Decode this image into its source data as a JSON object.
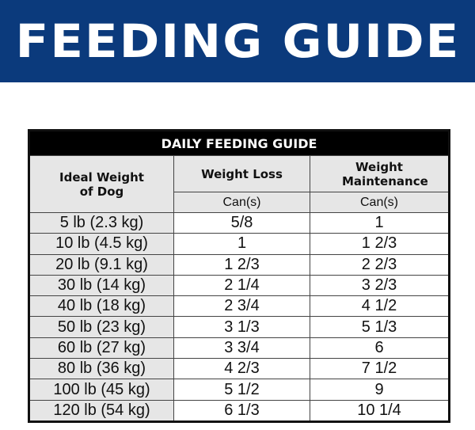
{
  "banner": {
    "title": "FEEDING GUIDE"
  },
  "table": {
    "title": "DAILY FEEDING GUIDE",
    "headers": {
      "weight": "Ideal Weight of Dog",
      "loss": "Weight Loss",
      "maintenance": "Weight Maintenance",
      "loss_unit": "Can(s)",
      "maintenance_unit": "Can(s)"
    },
    "rows": [
      {
        "weight": "5 lb (2.3 kg)",
        "loss": "5/8",
        "maintenance": "1"
      },
      {
        "weight": "10 lb (4.5 kg)",
        "loss": "1",
        "maintenance": "1 2/3"
      },
      {
        "weight": "20 lb (9.1 kg)",
        "loss": "1 2/3",
        "maintenance": "2 2/3"
      },
      {
        "weight": "30 lb (14 kg)",
        "loss": "2 1/4",
        "maintenance": "3 2/3"
      },
      {
        "weight": "40 lb (18 kg)",
        "loss": "2 3/4",
        "maintenance": "4 1/2"
      },
      {
        "weight": "50 lb (23 kg)",
        "loss": "3 1/3",
        "maintenance": "5 1/3"
      },
      {
        "weight": "60 lb (27 kg)",
        "loss": "3 3/4",
        "maintenance": "6"
      },
      {
        "weight": "80 lb (36 kg)",
        "loss": "4 2/3",
        "maintenance": "7 1/2"
      },
      {
        "weight": "100 lb (45 kg)",
        "loss": "5 1/2",
        "maintenance": "9"
      },
      {
        "weight": "120 lb (54 kg)",
        "loss": "6 1/3",
        "maintenance": "10 1/4"
      }
    ]
  }
}
